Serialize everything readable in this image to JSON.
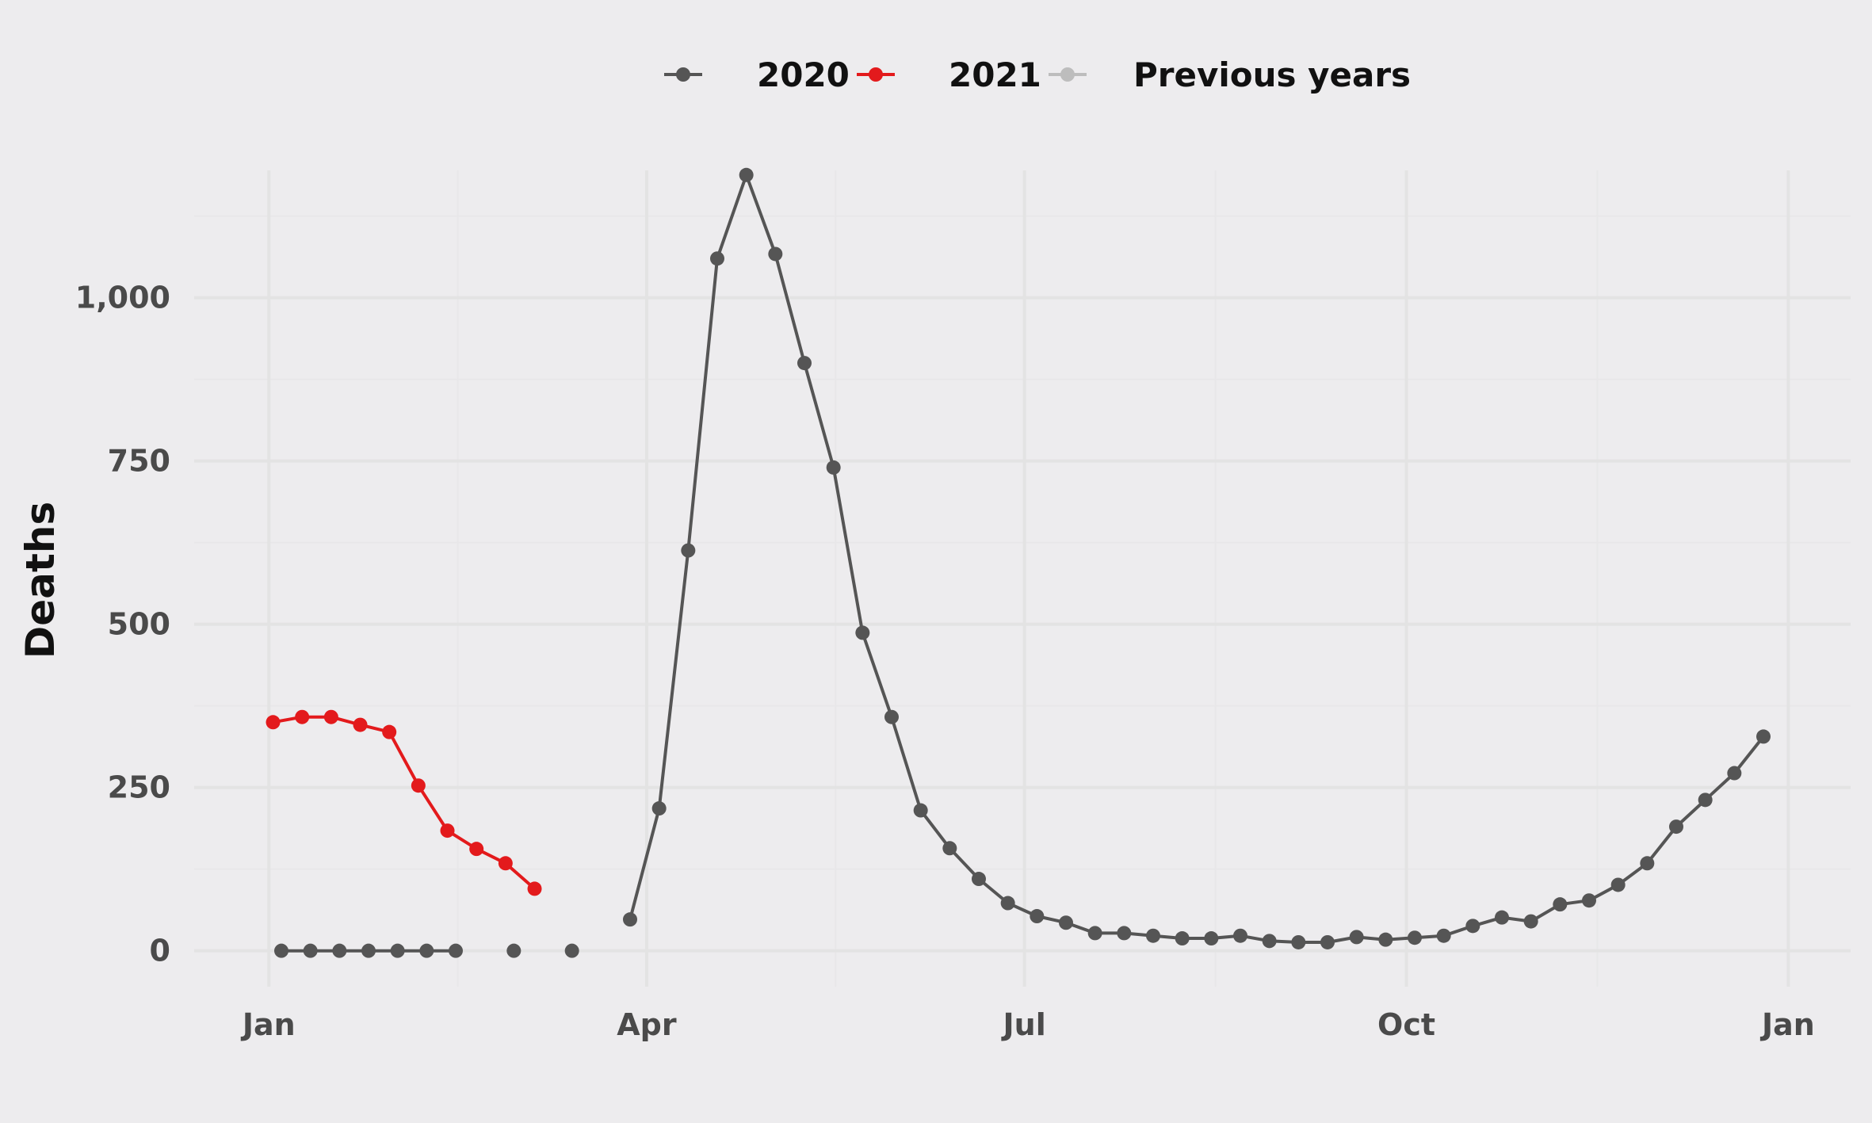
{
  "chart_data": {
    "type": "line",
    "title": "",
    "xlabel": "",
    "ylabel": "Deaths",
    "ylim": [
      -55,
      1195
    ],
    "xlim": [
      -18,
      381
    ],
    "y_ticks": [
      0,
      250,
      500,
      750,
      1000
    ],
    "y_tick_labels": [
      "0",
      "250",
      "500",
      "750",
      "1,000"
    ],
    "x_ticks": [
      0,
      91,
      182,
      274,
      366
    ],
    "x_tick_labels": [
      "Jan",
      "Apr",
      "Jul",
      "Oct",
      "Jan"
    ],
    "grid": true,
    "legend_position": "top",
    "colors": {
      "2020": "#555555",
      "2021": "#e31a1c",
      "Previous years": "#bdbdbd",
      "background": "#edecee",
      "grid": "#e3e3e3"
    },
    "series": [
      {
        "name": "2020",
        "color": "#555555",
        "points": [
          {
            "x": 3,
            "y": 0
          },
          {
            "x": 10,
            "y": 0
          },
          {
            "x": 17,
            "y": 0
          },
          {
            "x": 24,
            "y": 0
          },
          {
            "x": 31,
            "y": 0
          },
          {
            "x": 38,
            "y": 0
          },
          {
            "x": 45,
            "y": 0
          },
          {
            "x": 59,
            "y": 0
          },
          {
            "x": 73,
            "y": 0
          },
          {
            "x": 87,
            "y": 48
          },
          {
            "x": 94,
            "y": 218
          },
          {
            "x": 101,
            "y": 613
          },
          {
            "x": 108,
            "y": 1060
          },
          {
            "x": 115,
            "y": 1188
          },
          {
            "x": 122,
            "y": 1067
          },
          {
            "x": 129,
            "y": 900
          },
          {
            "x": 136,
            "y": 740
          },
          {
            "x": 143,
            "y": 487
          },
          {
            "x": 150,
            "y": 358
          },
          {
            "x": 157,
            "y": 215
          },
          {
            "x": 164,
            "y": 157
          },
          {
            "x": 171,
            "y": 110
          },
          {
            "x": 178,
            "y": 73
          },
          {
            "x": 185,
            "y": 53
          },
          {
            "x": 192,
            "y": 43
          },
          {
            "x": 199,
            "y": 27
          },
          {
            "x": 206,
            "y": 27
          },
          {
            "x": 213,
            "y": 23
          },
          {
            "x": 220,
            "y": 19
          },
          {
            "x": 227,
            "y": 19
          },
          {
            "x": 234,
            "y": 23
          },
          {
            "x": 241,
            "y": 15
          },
          {
            "x": 248,
            "y": 13
          },
          {
            "x": 255,
            "y": 13
          },
          {
            "x": 262,
            "y": 21
          },
          {
            "x": 269,
            "y": 17
          },
          {
            "x": 276,
            "y": 20
          },
          {
            "x": 283,
            "y": 23
          },
          {
            "x": 290,
            "y": 38
          },
          {
            "x": 297,
            "y": 51
          },
          {
            "x": 304,
            "y": 45
          },
          {
            "x": 311,
            "y": 71
          },
          {
            "x": 318,
            "y": 77
          },
          {
            "x": 325,
            "y": 101
          },
          {
            "x": 332,
            "y": 134
          },
          {
            "x": 339,
            "y": 190
          },
          {
            "x": 346,
            "y": 231
          },
          {
            "x": 353,
            "y": 272
          },
          {
            "x": 360,
            "y": 328
          }
        ],
        "segments": [
          [
            0,
            7
          ],
          [
            9,
            49
          ]
        ]
      },
      {
        "name": "2021",
        "color": "#e31a1c",
        "points": [
          {
            "x": 1,
            "y": 350
          },
          {
            "x": 8,
            "y": 358
          },
          {
            "x": 15,
            "y": 358
          },
          {
            "x": 22,
            "y": 346
          },
          {
            "x": 29,
            "y": 335
          },
          {
            "x": 36,
            "y": 253
          },
          {
            "x": 43,
            "y": 184
          },
          {
            "x": 50,
            "y": 156
          },
          {
            "x": 57,
            "y": 134
          },
          {
            "x": 64,
            "y": 95
          }
        ],
        "segments": [
          [
            0,
            10
          ]
        ]
      }
    ],
    "legend": [
      {
        "label": "2020",
        "color": "#555555"
      },
      {
        "label": "2021",
        "color": "#e31a1c"
      },
      {
        "label": "Previous years",
        "color": "#bdbdbd"
      }
    ]
  }
}
